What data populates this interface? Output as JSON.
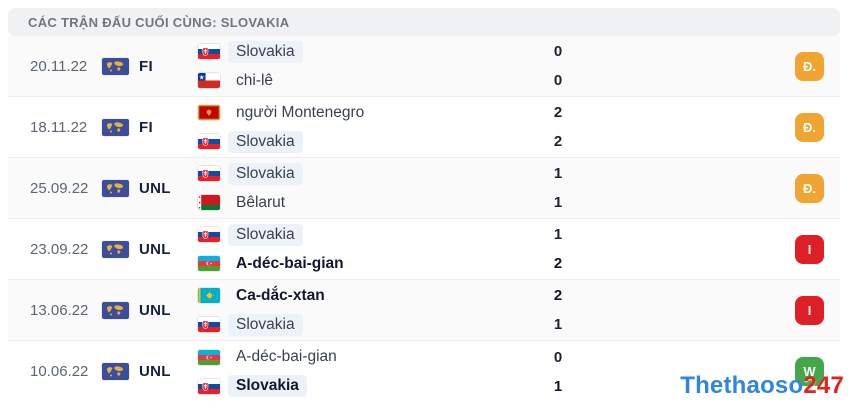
{
  "header": {
    "title": "CÁC TRẬN ĐẤU CUỐI CÙNG: SLOVAKIA"
  },
  "colors": {
    "draw": "#f0a432",
    "loss": "#df1f26",
    "win": "#46a64b",
    "highlight": "#edf1f9",
    "header_bg": "#f0f1f3"
  },
  "watermark": {
    "part1": "Thethaoso",
    "part2": "247"
  },
  "matches": [
    {
      "date": "20.11.22",
      "competition": "FI",
      "home": {
        "team": "Slovakia",
        "flag": "slovakia",
        "score": "0",
        "bold": false,
        "highlight": true
      },
      "away": {
        "team": "chi-lê",
        "flag": "chile",
        "score": "0",
        "bold": false,
        "highlight": false
      },
      "result": {
        "label": "Đ.",
        "type": "draw"
      }
    },
    {
      "date": "18.11.22",
      "competition": "FI",
      "home": {
        "team": "người Montenegro",
        "flag": "montenegro",
        "score": "2",
        "bold": false,
        "highlight": false
      },
      "away": {
        "team": "Slovakia",
        "flag": "slovakia",
        "score": "2",
        "bold": false,
        "highlight": true
      },
      "result": {
        "label": "Đ.",
        "type": "draw"
      }
    },
    {
      "date": "25.09.22",
      "competition": "UNL",
      "home": {
        "team": "Slovakia",
        "flag": "slovakia",
        "score": "1",
        "bold": false,
        "highlight": true
      },
      "away": {
        "team": "Bêlarut",
        "flag": "belarus",
        "score": "1",
        "bold": false,
        "highlight": false
      },
      "result": {
        "label": "Đ.",
        "type": "draw"
      }
    },
    {
      "date": "23.09.22",
      "competition": "UNL",
      "home": {
        "team": "Slovakia",
        "flag": "slovakia",
        "score": "1",
        "bold": false,
        "highlight": true
      },
      "away": {
        "team": "A-déc-bai-gian",
        "flag": "azerbaijan",
        "score": "2",
        "bold": true,
        "highlight": false
      },
      "result": {
        "label": "I",
        "type": "loss"
      }
    },
    {
      "date": "13.06.22",
      "competition": "UNL",
      "home": {
        "team": "Ca-dắc-xtan",
        "flag": "kazakhstan",
        "score": "2",
        "bold": true,
        "highlight": false
      },
      "away": {
        "team": "Slovakia",
        "flag": "slovakia",
        "score": "1",
        "bold": false,
        "highlight": true
      },
      "result": {
        "label": "I",
        "type": "loss"
      }
    },
    {
      "date": "10.06.22",
      "competition": "UNL",
      "home": {
        "team": "A-déc-bai-gian",
        "flag": "azerbaijan",
        "score": "0",
        "bold": false,
        "highlight": false
      },
      "away": {
        "team": "Slovakia",
        "flag": "slovakia",
        "score": "1",
        "bold": true,
        "highlight": true
      },
      "result": {
        "label": "W",
        "type": "win"
      }
    }
  ]
}
